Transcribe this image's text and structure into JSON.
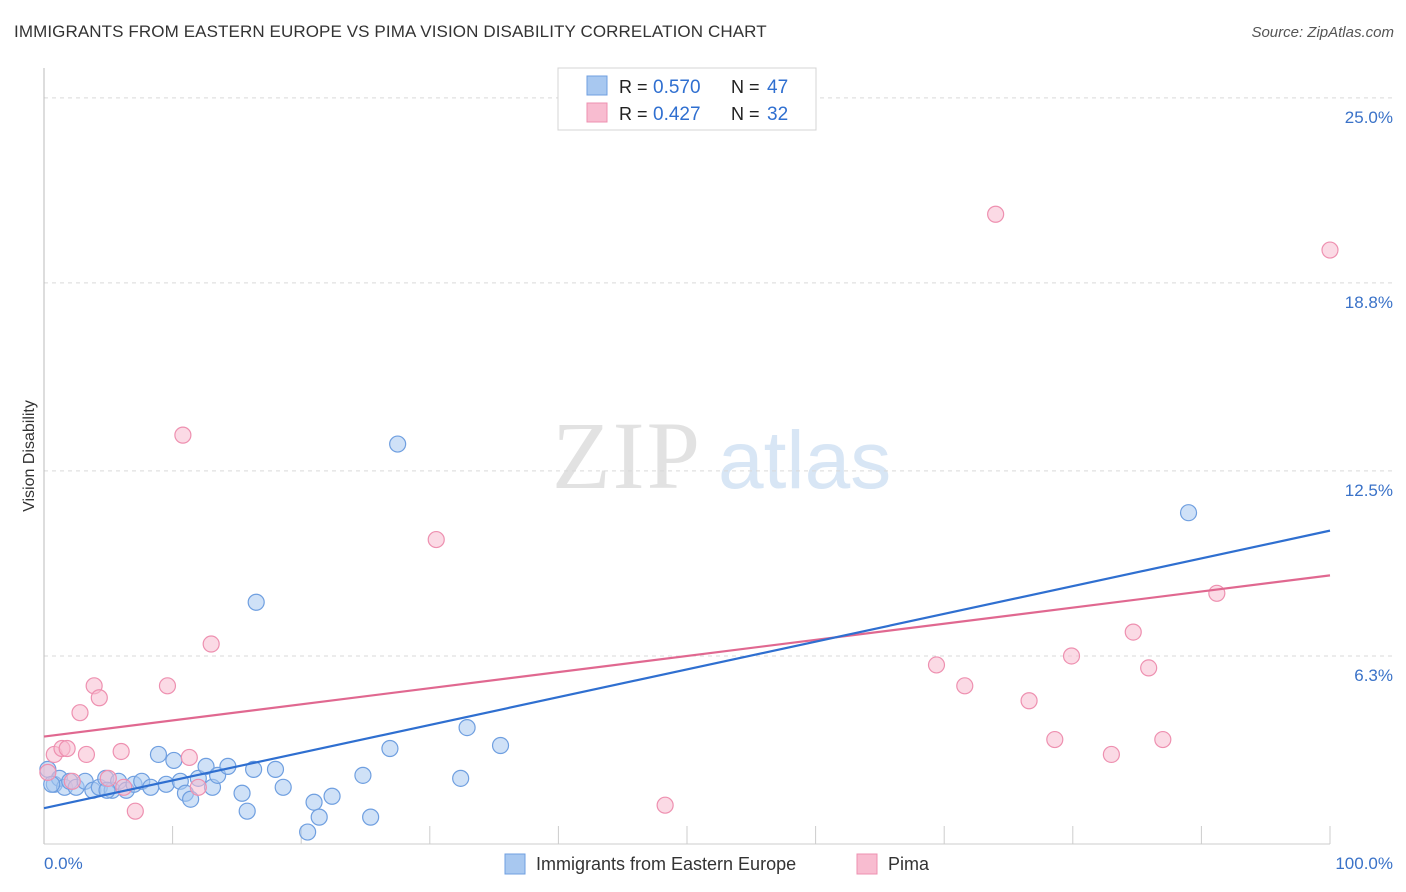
{
  "title": "IMMIGRANTS FROM EASTERN EUROPE VS PIMA VISION DISABILITY CORRELATION CHART",
  "source": "Source: ZipAtlas.com",
  "watermark": {
    "zip": "ZIP",
    "atlas": "atlas"
  },
  "legend_box": {
    "rows": [
      {
        "r_label": "R = ",
        "r_value": "0.570",
        "n_label": "N = ",
        "n_value": "47"
      },
      {
        "r_label": "R = ",
        "r_value": "0.427",
        "n_label": "N = ",
        "n_value": "32"
      }
    ]
  },
  "colors": {
    "blue_fill": "#a8c8f0",
    "blue_stroke": "#6f9fe0",
    "blue_line": "#2f6fd0",
    "pink_fill": "#f8bcd0",
    "pink_stroke": "#ee90b0",
    "pink_line": "#e06890",
    "tick_label": "#3a72c8",
    "grid": "#d9d9d9"
  },
  "chart_data": {
    "type": "scatter",
    "title": "IMMIGRANTS FROM EASTERN EUROPE VS PIMA VISION DISABILITY CORRELATION CHART",
    "xlabel": "",
    "ylabel": "Vision Disability",
    "xlim": [
      0,
      100
    ],
    "ylim": [
      0,
      26
    ],
    "x_tick_labels": [
      "0.0%",
      "100.0%"
    ],
    "y_ticks": [
      6.3,
      12.5,
      18.8,
      25.0
    ],
    "y_tick_labels": [
      "6.3%",
      "12.5%",
      "18.8%",
      "25.0%"
    ],
    "grid": true,
    "legend_position": "bottom-center",
    "series": [
      {
        "name": "Immigrants from Eastern Europe",
        "r": 0.57,
        "n": 47,
        "trend": {
          "x": [
            0,
            100
          ],
          "y": [
            1.2,
            10.5
          ]
        },
        "points": [
          [
            0.3,
            2.5
          ],
          [
            0.8,
            2.0
          ],
          [
            1.2,
            2.2
          ],
          [
            1.6,
            1.9
          ],
          [
            2.0,
            2.1
          ],
          [
            2.5,
            1.9
          ],
          [
            3.2,
            2.1
          ],
          [
            3.8,
            1.8
          ],
          [
            4.3,
            1.9
          ],
          [
            4.8,
            2.2
          ],
          [
            5.3,
            1.8
          ],
          [
            5.8,
            2.1
          ],
          [
            6.4,
            1.8
          ],
          [
            7.0,
            2.0
          ],
          [
            7.6,
            2.1
          ],
          [
            8.3,
            1.9
          ],
          [
            8.9,
            3.0
          ],
          [
            9.5,
            2.0
          ],
          [
            10.1,
            2.8
          ],
          [
            10.6,
            2.1
          ],
          [
            11.0,
            1.7
          ],
          [
            11.4,
            1.5
          ],
          [
            12.0,
            2.2
          ],
          [
            12.6,
            2.6
          ],
          [
            13.1,
            1.9
          ],
          [
            13.5,
            2.3
          ],
          [
            14.3,
            2.6
          ],
          [
            15.4,
            1.7
          ],
          [
            15.8,
            1.1
          ],
          [
            16.3,
            2.5
          ],
          [
            16.5,
            8.1
          ],
          [
            18.0,
            2.5
          ],
          [
            18.6,
            1.9
          ],
          [
            20.5,
            0.4
          ],
          [
            21.0,
            1.4
          ],
          [
            21.4,
            0.9
          ],
          [
            22.4,
            1.6
          ],
          [
            24.8,
            2.3
          ],
          [
            25.4,
            0.9
          ],
          [
            26.9,
            3.2
          ],
          [
            27.5,
            13.4
          ],
          [
            32.4,
            2.2
          ],
          [
            32.9,
            3.9
          ],
          [
            35.5,
            3.3
          ],
          [
            89.0,
            11.1
          ],
          [
            0.6,
            2.0
          ],
          [
            4.9,
            1.8
          ]
        ]
      },
      {
        "name": "Pima",
        "r": 0.427,
        "n": 32,
        "trend": {
          "x": [
            0,
            100
          ],
          "y": [
            3.6,
            9.0
          ]
        },
        "points": [
          [
            0.3,
            2.4
          ],
          [
            0.8,
            3.0
          ],
          [
            1.4,
            3.2
          ],
          [
            1.8,
            3.2
          ],
          [
            2.2,
            2.1
          ],
          [
            2.8,
            4.4
          ],
          [
            3.3,
            3.0
          ],
          [
            3.9,
            5.3
          ],
          [
            4.3,
            4.9
          ],
          [
            5.0,
            2.2
          ],
          [
            6.0,
            3.1
          ],
          [
            6.2,
            1.9
          ],
          [
            7.1,
            1.1
          ],
          [
            9.6,
            5.3
          ],
          [
            10.8,
            13.7
          ],
          [
            11.3,
            2.9
          ],
          [
            12.0,
            1.9
          ],
          [
            13.0,
            6.7
          ],
          [
            30.5,
            10.2
          ],
          [
            48.3,
            1.3
          ],
          [
            69.4,
            6.0
          ],
          [
            74.0,
            21.1
          ],
          [
            71.6,
            5.3
          ],
          [
            76.6,
            4.8
          ],
          [
            78.6,
            3.5
          ],
          [
            79.9,
            6.3
          ],
          [
            83.0,
            3.0
          ],
          [
            84.7,
            7.1
          ],
          [
            85.9,
            5.9
          ],
          [
            87.0,
            3.5
          ],
          [
            91.2,
            8.4
          ],
          [
            100.0,
            19.9
          ]
        ]
      }
    ]
  }
}
